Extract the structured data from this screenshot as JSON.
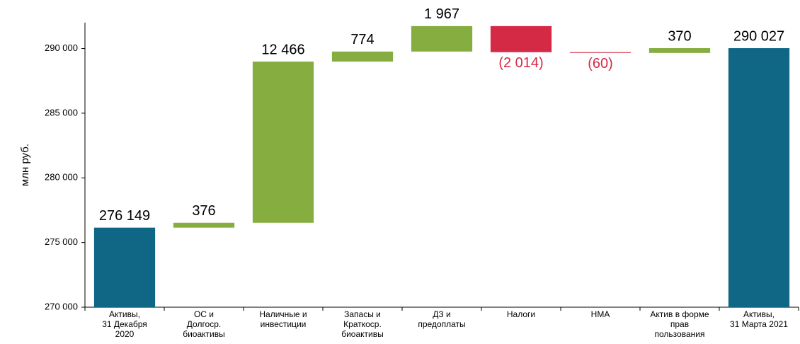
{
  "chart_data": {
    "type": "waterfall",
    "y_label": "млн руб.",
    "categories": [
      "Активы,\n31 Декабря\n2020",
      "ОС и\nДолгоср.\nбиоактивы",
      "Наличные и\nинвестиции",
      "Запасы и\nКраткоср.\nбиоактивы",
      "ДЗ и\nпредоплаты",
      "Налоги",
      "НМА",
      "Актив в форме\nправ\nпользования",
      "Активы,\n31 Марта 2021"
    ],
    "values": [
      276149,
      376,
      12466,
      774,
      1967,
      -2014,
      -60,
      370,
      290027
    ],
    "value_labels": [
      "276 149",
      "376",
      "12 466",
      "774",
      "1 967",
      "(2 014)",
      "(60)",
      "370",
      "290 027"
    ],
    "measure": [
      "total",
      "relative",
      "relative",
      "relative",
      "relative",
      "relative",
      "relative",
      "relative",
      "total"
    ],
    "colors": [
      "#0f6785",
      "#86ad3f",
      "#86ad3f",
      "#86ad3f",
      "#86ad3f",
      "#d42a46",
      "#d42a46",
      "#86ad3f",
      "#0f6785"
    ],
    "ylim": [
      270000,
      292000
    ],
    "yticks": [
      {
        "value": 270000,
        "label": "270 000"
      },
      {
        "value": 275000,
        "label": "275 000"
      },
      {
        "value": 280000,
        "label": "280 000"
      },
      {
        "value": 285000,
        "label": "285 000"
      },
      {
        "value": 290000,
        "label": "290 000"
      }
    ]
  }
}
